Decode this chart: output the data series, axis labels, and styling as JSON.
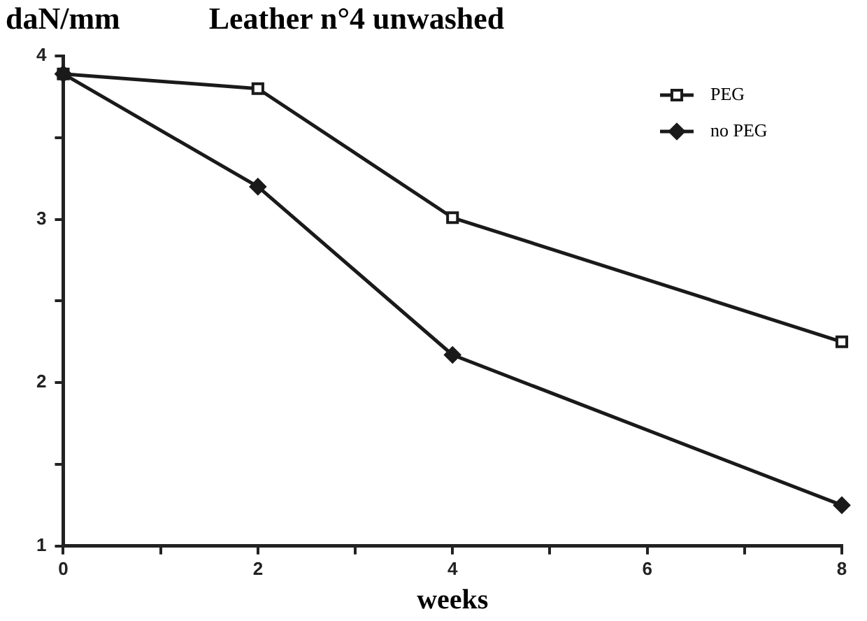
{
  "chart_data": {
    "type": "line",
    "title": "Leather n°4 unwashed",
    "ylabel": "daN/mm",
    "xlabel": "weeks",
    "x": [
      0,
      2,
      4,
      8
    ],
    "series": [
      {
        "name": "PEG",
        "color": "#1a1a1a",
        "marker": "square",
        "values": [
          3.89,
          3.8,
          3.01,
          2.25
        ]
      },
      {
        "name": "no PEG",
        "color": "#1a1a1a",
        "marker": "diamond",
        "values": [
          3.89,
          3.2,
          2.17,
          1.25
        ]
      }
    ],
    "xlim": [
      0,
      8
    ],
    "xticks": [
      0,
      {
        "value": 1,
        "label": null
      },
      2,
      {
        "value": 3,
        "label": null
      },
      4,
      {
        "value": 5,
        "label": null
      },
      6,
      {
        "value": 7,
        "label": null
      },
      8
    ],
    "ylim": [
      1,
      4
    ],
    "yticks": [
      1,
      {
        "value": 1.5,
        "label": null
      },
      2,
      {
        "value": 2.5,
        "label": null
      },
      3,
      {
        "value": 3.5,
        "label": null
      },
      4
    ],
    "legend": "top right",
    "line_style": "solid"
  }
}
